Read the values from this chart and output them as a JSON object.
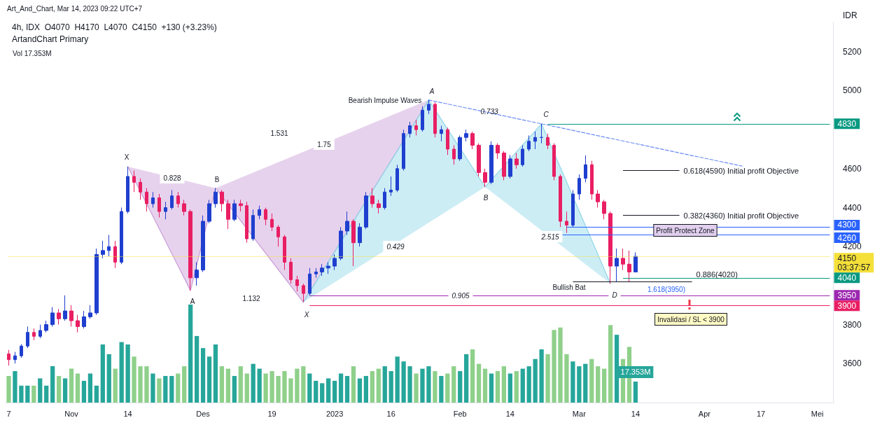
{
  "chart_data": {
    "type": "candlestick",
    "title": "4h, IDX  O4070  H4170  L4070  C4150  +130 (+3.23%)",
    "subtitle": "ArtandChart Primary",
    "ylabel": "IDR",
    "categories": [
      "7",
      null,
      null,
      null,
      null,
      null,
      null,
      null,
      null,
      null,
      "Nov",
      null,
      null,
      null,
      null,
      null,
      null,
      null,
      null,
      "14",
      null,
      null,
      null,
      null,
      null,
      null,
      null,
      null,
      null,
      null,
      null,
      "Des",
      null,
      null,
      null,
      null,
      null,
      null,
      null,
      null,
      null,
      null,
      "19",
      null,
      null,
      null,
      null,
      null,
      null,
      null,
      null,
      null,
      "2023",
      null,
      null,
      null,
      null,
      null,
      null,
      null,
      null,
      "16",
      null,
      null,
      null,
      null,
      null,
      null,
      null,
      null,
      null,
      null,
      "Feb",
      null,
      null,
      null,
      null,
      null,
      null,
      null,
      "14",
      null,
      null,
      null,
      null,
      null,
      null,
      null,
      null,
      null,
      null,
      "Mar",
      null,
      null,
      null,
      null,
      null,
      null,
      null,
      null,
      "14",
      null,
      null,
      null,
      null,
      null,
      null,
      null,
      null,
      null,
      null,
      "Apr",
      null,
      null,
      null,
      null,
      null,
      null,
      null,
      null,
      "17",
      null,
      null,
      null,
      null,
      null,
      null,
      null,
      null,
      "Mei",
      null,
      null
    ],
    "ylim": [
      3400,
      5350
    ],
    "yticks": [
      3600,
      3800,
      4200,
      4400,
      4600,
      5000,
      5200
    ],
    "y2lim": [
      0,
      314
    ],
    "series": [
      {
        "ohlc": [
          [
            3650,
            3670,
            3590,
            3620
          ],
          [
            3620,
            3660,
            3600,
            3640
          ],
          [
            3640,
            3700,
            3630,
            3690
          ],
          [
            3690,
            3790,
            3680,
            3760
          ],
          [
            3760,
            3780,
            3720,
            3740
          ],
          [
            3740,
            3800,
            3730,
            3770
          ],
          [
            3770,
            3820,
            3760,
            3800
          ],
          [
            3800,
            3890,
            3790,
            3860
          ],
          [
            3860,
            3880,
            3800,
            3830
          ],
          [
            3830,
            3950,
            3820,
            3870
          ],
          [
            3870,
            3900,
            3790,
            3820
          ],
          [
            3820,
            3850,
            3760,
            3790
          ],
          [
            3790,
            3870,
            3780,
            3840
          ],
          [
            3840,
            3900,
            3830,
            3860
          ],
          [
            3860,
            4190,
            3850,
            4160
          ],
          [
            4160,
            4230,
            4140,
            4180
          ],
          [
            4180,
            4260,
            4150,
            4200
          ],
          [
            4200,
            4230,
            4090,
            4120
          ],
          [
            4120,
            4400,
            4110,
            4380
          ],
          [
            4380,
            4610,
            4370,
            4560
          ],
          [
            4560,
            4590,
            4480,
            4530
          ],
          [
            4530,
            4550,
            4440,
            4480
          ],
          [
            4480,
            4500,
            4380,
            4420
          ],
          [
            4420,
            4480,
            4400,
            4450
          ],
          [
            4450,
            4470,
            4350,
            4380
          ],
          [
            4380,
            4430,
            4340,
            4400
          ],
          [
            4400,
            4490,
            4390,
            4460
          ],
          [
            4460,
            4480,
            4400,
            4420
          ],
          [
            4420,
            4440,
            4360,
            4380
          ],
          [
            4380,
            4390,
            3975,
            4040
          ],
          [
            4040,
            4120,
            4000,
            4080
          ],
          [
            4080,
            4360,
            4070,
            4330
          ],
          [
            4330,
            4440,
            4320,
            4420
          ],
          [
            4420,
            4500,
            4400,
            4480
          ],
          [
            4480,
            4490,
            4380,
            4420
          ],
          [
            4420,
            4440,
            4290,
            4340
          ],
          [
            4340,
            4440,
            4330,
            4420
          ],
          [
            4420,
            4440,
            4380,
            4410
          ],
          [
            4410,
            4430,
            4220,
            4240
          ],
          [
            4240,
            4390,
            4230,
            4360
          ],
          [
            4360,
            4410,
            4340,
            4390
          ],
          [
            4390,
            4400,
            4310,
            4340
          ],
          [
            4340,
            4370,
            4280,
            4300
          ],
          [
            4300,
            4310,
            4200,
            4250
          ],
          [
            4250,
            4260,
            4080,
            4120
          ],
          [
            4120,
            4140,
            4010,
            4030
          ],
          [
            4030,
            4050,
            3970,
            4000
          ],
          [
            4000,
            4010,
            3915,
            3960
          ],
          [
            3960,
            4090,
            3950,
            4060
          ],
          [
            4060,
            4090,
            4040,
            4070
          ],
          [
            4070,
            4110,
            4050,
            4090
          ],
          [
            4090,
            4120,
            4060,
            4100
          ],
          [
            4100,
            4160,
            4080,
            4140
          ],
          [
            4140,
            4300,
            4130,
            4280
          ],
          [
            4280,
            4380,
            4260,
            4330
          ],
          [
            4330,
            4340,
            4100,
            4220
          ],
          [
            4220,
            4320,
            4200,
            4300
          ],
          [
            4300,
            4480,
            4290,
            4460
          ],
          [
            4460,
            4500,
            4400,
            4420
          ],
          [
            4420,
            4440,
            4370,
            4400
          ],
          [
            4400,
            4500,
            4390,
            4480
          ],
          [
            4480,
            4560,
            4460,
            4490
          ],
          [
            4490,
            4620,
            4480,
            4600
          ],
          [
            4600,
            4800,
            4590,
            4780
          ],
          [
            4780,
            4840,
            4760,
            4820
          ],
          [
            4820,
            4850,
            4770,
            4800
          ],
          [
            4800,
            4920,
            4790,
            4900
          ],
          [
            4900,
            4952,
            4880,
            4930
          ],
          [
            4930,
            4940,
            4760,
            4780
          ],
          [
            4780,
            4820,
            4740,
            4800
          ],
          [
            4800,
            4810,
            4670,
            4700
          ],
          [
            4700,
            4720,
            4620,
            4650
          ],
          [
            4650,
            4770,
            4640,
            4760
          ],
          [
            4760,
            4800,
            4740,
            4780
          ],
          [
            4780,
            4790,
            4700,
            4720
          ],
          [
            4720,
            4730,
            4560,
            4580
          ],
          [
            4580,
            4600,
            4506,
            4530
          ],
          [
            4530,
            4740,
            4520,
            4720
          ],
          [
            4720,
            4730,
            4650,
            4680
          ],
          [
            4680,
            4690,
            4540,
            4560
          ],
          [
            4560,
            4670,
            4550,
            4650
          ],
          [
            4650,
            4680,
            4600,
            4620
          ],
          [
            4620,
            4720,
            4610,
            4700
          ],
          [
            4700,
            4770,
            4690,
            4740
          ],
          [
            4740,
            4790,
            4700,
            4760
          ],
          [
            4760,
            4830,
            4730,
            4760
          ],
          [
            4760,
            4780,
            4700,
            4720
          ],
          [
            4720,
            4730,
            4540,
            4560
          ],
          [
            4560,
            4570,
            4300,
            4330
          ],
          [
            4330,
            4380,
            4270,
            4310
          ],
          [
            4310,
            4490,
            4300,
            4470
          ],
          [
            4470,
            4570,
            4440,
            4550
          ],
          [
            4550,
            4668,
            4530,
            4620
          ],
          [
            4620,
            4640,
            4440,
            4470
          ],
          [
            4470,
            4490,
            4400,
            4430
          ],
          [
            4430,
            4440,
            4340,
            4370
          ],
          [
            4370,
            4380,
            4010,
            4100
          ],
          [
            4100,
            4190,
            4020,
            4140
          ],
          [
            4140,
            4190,
            4080,
            4110
          ],
          [
            4110,
            4180,
            4020,
            4070
          ],
          [
            4070,
            4170,
            4070,
            4150
          ],
          null,
          null,
          null,
          null,
          null,
          null,
          null,
          null,
          null,
          null,
          null,
          null,
          null,
          null,
          null,
          null,
          null,
          null,
          null,
          null,
          null,
          null,
          null,
          null,
          null,
          null,
          null,
          null,
          null,
          null,
          null
        ],
        "colors": [
          "#e91e63",
          "#1f3fcf",
          "#1f3fcf",
          "#1f3fcf",
          "#e91e63",
          "#1f3fcf",
          "#1f3fcf",
          "#1f3fcf",
          "#e91e63",
          "#1f3fcf",
          "#e91e63",
          "#e91e63",
          "#1f3fcf",
          "#1f3fcf",
          "#1f3fcf",
          "#1f3fcf",
          "#1f3fcf",
          "#e91e63",
          "#1f3fcf",
          "#1f3fcf",
          "#e91e63",
          "#e91e63",
          "#e91e63",
          "#1f3fcf",
          "#e91e63",
          "#1f3fcf",
          "#1f3fcf",
          "#e91e63",
          "#e91e63",
          "#e91e63",
          "#1f3fcf",
          "#1f3fcf",
          "#1f3fcf",
          "#1f3fcf",
          "#e91e63",
          "#e91e63",
          "#1f3fcf",
          "#e91e63",
          "#e91e63",
          "#1f3fcf",
          "#1f3fcf",
          "#e91e63",
          "#e91e63",
          "#e91e63",
          "#e91e63",
          "#e91e63",
          "#e91e63",
          "#e91e63",
          "#1f3fcf",
          "#1f3fcf",
          "#1f3fcf",
          "#1f3fcf",
          "#1f3fcf",
          "#1f3fcf",
          "#1f3fcf",
          "#e91e63",
          "#1f3fcf",
          "#1f3fcf",
          "#e91e63",
          "#e91e63",
          "#1f3fcf",
          "#1f3fcf",
          "#1f3fcf",
          "#1f3fcf",
          "#1f3fcf",
          "#e91e63",
          "#1f3fcf",
          "#1f3fcf",
          "#e91e63",
          "#1f3fcf",
          "#e91e63",
          "#e91e63",
          "#1f3fcf",
          "#1f3fcf",
          "#e91e63",
          "#e91e63",
          "#e91e63",
          "#1f3fcf",
          "#e91e63",
          "#e91e63",
          "#1f3fcf",
          "#e91e63",
          "#1f3fcf",
          "#1f3fcf",
          "#1f3fcf",
          "#1f3fcf",
          "#e91e63",
          "#e91e63",
          "#e91e63",
          "#e91e63",
          "#1f3fcf",
          "#1f3fcf",
          "#1f3fcf",
          "#e91e63",
          "#e91e63",
          "#e91e63",
          "#e91e63",
          "#1f3fcf",
          "#e91e63",
          "#e91e63",
          "#1f3fcf",
          null,
          null,
          null,
          null,
          null,
          null,
          null,
          null,
          null,
          null,
          null,
          null,
          null,
          null,
          null,
          null,
          null,
          null,
          null,
          null,
          null,
          null,
          null,
          null,
          null,
          null,
          null,
          null,
          null,
          null,
          null
        ]
      },
      {
        "type": "bar",
        "axis": "y2",
        "values": [
          22,
          26,
          14,
          14,
          14,
          20,
          14,
          30,
          22,
          20,
          28,
          24,
          18,
          24,
          14,
          48,
          40,
          28,
          50,
          48,
          38,
          30,
          30,
          24,
          20,
          22,
          22,
          24,
          30,
          81,
          55,
          45,
          38,
          48,
          30,
          28,
          22,
          30,
          24,
          32,
          28,
          24,
          26,
          22,
          26,
          20,
          28,
          30,
          24,
          18,
          16,
          20,
          18,
          24,
          22,
          30,
          20,
          22,
          26,
          28,
          30,
          26,
          38,
          34,
          30,
          24,
          28,
          30,
          26,
          22,
          24,
          30,
          26,
          40,
          44,
          32,
          28,
          24,
          26,
          30,
          24,
          26,
          28,
          30,
          36,
          44,
          40,
          60,
          62,
          40,
          34,
          30,
          32,
          36,
          30,
          28,
          64,
          56,
          36,
          46,
          17.353,
          null,
          null,
          null,
          null,
          null,
          null,
          null,
          null,
          null,
          null,
          null,
          null,
          null,
          null,
          null,
          null,
          null,
          null,
          null,
          null,
          null,
          null,
          null,
          null,
          null,
          null,
          null,
          null,
          null,
          null,
          null
        ],
        "colors": [
          "#8fd08a",
          "#26a69a",
          "#26a69a",
          "#26a69a",
          "#8fd08a",
          "#26a69a",
          "#26a69a",
          "#26a69a",
          "#8fd08a",
          "#26a69a",
          "#8fd08a",
          "#8fd08a",
          "#26a69a",
          "#26a69a",
          "#26a69a",
          "#26a69a",
          "#26a69a",
          "#8fd08a",
          "#26a69a",
          "#26a69a",
          "#8fd08a",
          "#8fd08a",
          "#8fd08a",
          "#26a69a",
          "#8fd08a",
          "#26a69a",
          "#26a69a",
          "#8fd08a",
          "#8fd08a",
          "#26a69a",
          "#26a69a",
          "#26a69a",
          "#26a69a",
          "#26a69a",
          "#8fd08a",
          "#8fd08a",
          "#26a69a",
          "#8fd08a",
          "#8fd08a",
          "#26a69a",
          "#26a69a",
          "#8fd08a",
          "#8fd08a",
          "#8fd08a",
          "#8fd08a",
          "#8fd08a",
          "#8fd08a",
          "#8fd08a",
          "#26a69a",
          "#26a69a",
          "#26a69a",
          "#26a69a",
          "#26a69a",
          "#26a69a",
          "#26a69a",
          "#8fd08a",
          "#26a69a",
          "#26a69a",
          "#8fd08a",
          "#8fd08a",
          "#26a69a",
          "#26a69a",
          "#26a69a",
          "#26a69a",
          "#26a69a",
          "#8fd08a",
          "#26a69a",
          "#26a69a",
          "#8fd08a",
          "#26a69a",
          "#8fd08a",
          "#8fd08a",
          "#26a69a",
          "#26a69a",
          "#8fd08a",
          "#8fd08a",
          "#8fd08a",
          "#26a69a",
          "#8fd08a",
          "#8fd08a",
          "#26a69a",
          "#8fd08a",
          "#26a69a",
          "#26a69a",
          "#26a69a",
          "#26a69a",
          "#8fd08a",
          "#8fd08a",
          "#8fd08a",
          "#8fd08a",
          "#26a69a",
          "#26a69a",
          "#26a69a",
          "#8fd08a",
          "#8fd08a",
          "#8fd08a",
          "#8fd08a",
          "#26a69a",
          "#8fd08a",
          "#8fd08a",
          "#26a69a",
          null,
          null,
          null,
          null,
          null,
          null,
          null,
          null,
          null,
          null,
          null,
          null,
          null,
          null,
          null,
          null,
          null,
          null,
          null,
          null,
          null,
          null,
          null,
          null,
          null,
          null,
          null,
          null,
          null,
          null,
          null
        ],
        "value_labels": [
          null,
          null,
          null,
          null,
          null,
          null,
          null,
          null,
          null,
          null,
          null,
          null,
          null,
          null,
          null,
          null,
          null,
          null,
          null,
          null,
          null,
          null,
          null,
          null,
          null,
          null,
          null,
          null,
          null,
          null,
          null,
          null,
          null,
          null,
          null,
          null,
          null,
          null,
          null,
          null,
          null,
          null,
          null,
          null,
          null,
          null,
          null,
          null,
          null,
          null,
          null,
          null,
          null,
          null,
          null,
          null,
          null,
          null,
          null,
          null,
          null,
          null,
          null,
          null,
          null,
          null,
          null,
          null,
          null,
          null,
          null,
          null,
          null,
          null,
          null,
          null,
          null,
          null,
          null,
          null,
          null,
          null,
          null,
          null,
          null,
          null,
          null,
          null,
          null,
          null,
          null,
          null,
          null,
          null,
          null,
          null,
          null,
          null,
          null,
          null,
          "17.353M",
          null,
          null,
          null,
          null,
          null,
          null,
          null,
          null,
          null,
          null,
          null,
          null,
          null,
          null,
          null,
          null,
          null,
          null,
          null,
          null,
          null,
          null,
          null,
          null,
          null,
          null,
          null,
          null,
          null,
          null,
          null
        ]
      },
      {
        "type": "line",
        "color": "#c99ad8",
        "line_style": "solid",
        "values": [
          null,
          null,
          null,
          null,
          null,
          null,
          null,
          null,
          null,
          null,
          null,
          null,
          null,
          null,
          null,
          null,
          null,
          null,
          null,
          4610,
          null,
          null,
          null,
          null,
          null,
          null,
          null,
          null,
          null,
          3975,
          null,
          null,
          null,
          4500,
          null,
          null,
          null,
          null,
          null,
          null,
          null,
          null,
          null,
          null,
          null,
          null,
          null,
          3915,
          null,
          null,
          null,
          null,
          null,
          null,
          null,
          null,
          null,
          null,
          null,
          null,
          null,
          null,
          null,
          null,
          null,
          null,
          null,
          4952,
          null,
          null,
          null,
          null,
          null,
          null,
          null,
          null,
          null,
          null,
          null,
          null,
          null,
          null,
          null,
          null,
          null,
          null,
          null,
          null,
          null,
          null,
          null,
          null,
          null,
          null,
          null,
          null,
          null,
          null,
          null,
          null,
          null,
          null,
          null,
          null,
          null,
          null,
          null,
          null,
          null,
          null,
          null,
          null,
          null,
          null,
          null,
          null,
          null,
          null,
          null,
          null,
          null,
          null,
          null,
          null,
          null,
          null,
          null,
          null,
          null,
          null,
          null,
          null
        ]
      },
      {
        "type": "line",
        "color": "#8fd6e8",
        "line_style": "solid",
        "values": [
          null,
          null,
          null,
          null,
          null,
          null,
          null,
          null,
          null,
          null,
          null,
          null,
          null,
          null,
          null,
          null,
          null,
          null,
          null,
          null,
          null,
          null,
          null,
          null,
          null,
          null,
          null,
          null,
          null,
          null,
          null,
          null,
          null,
          null,
          null,
          null,
          null,
          null,
          null,
          null,
          null,
          null,
          null,
          null,
          null,
          null,
          null,
          3915,
          null,
          null,
          null,
          null,
          null,
          null,
          null,
          null,
          null,
          null,
          null,
          null,
          null,
          null,
          null,
          null,
          null,
          null,
          null,
          4952,
          null,
          null,
          null,
          null,
          null,
          null,
          null,
          null,
          4506,
          null,
          null,
          null,
          null,
          null,
          null,
          null,
          null,
          4830,
          null,
          null,
          null,
          null,
          null,
          null,
          null,
          null,
          null,
          null,
          4010,
          null,
          null,
          null,
          null,
          null,
          null,
          null,
          null,
          null,
          null,
          null,
          null,
          null,
          null,
          null,
          null,
          null,
          null,
          null,
          null,
          null,
          null,
          null,
          null,
          null,
          null,
          null,
          null,
          null,
          null,
          null,
          null,
          null,
          null,
          null
        ]
      },
      {
        "type": "line",
        "color": "#6b8cf5",
        "line_style": "dashed",
        "values": [
          null,
          null,
          null,
          null,
          null,
          null,
          null,
          null,
          null,
          null,
          null,
          null,
          null,
          null,
          null,
          null,
          null,
          null,
          null,
          null,
          null,
          null,
          null,
          null,
          null,
          null,
          null,
          null,
          null,
          null,
          null,
          null,
          null,
          null,
          null,
          null,
          null,
          null,
          null,
          null,
          null,
          null,
          null,
          null,
          null,
          null,
          null,
          null,
          null,
          null,
          null,
          null,
          null,
          null,
          null,
          null,
          null,
          null,
          null,
          null,
          null,
          null,
          null,
          null,
          null,
          null,
          null,
          4952,
          null,
          null,
          null,
          null,
          null,
          null,
          null,
          null,
          null,
          null,
          null,
          null,
          null,
          null,
          null,
          null,
          null,
          null,
          null,
          null,
          null,
          null,
          null,
          null,
          null,
          null,
          null,
          null,
          null,
          null,
          null,
          null,
          null,
          null,
          null,
          null,
          null,
          null,
          null,
          null,
          null,
          null,
          null,
          null,
          null,
          null,
          null,
          null,
          null,
          4613,
          null,
          null,
          null,
          null,
          null,
          null,
          null,
          null,
          null,
          null,
          null,
          null,
          null,
          null
        ]
      }
    ],
    "ref_lines": [
      {
        "axis": "y",
        "value": 4830,
        "label": "4830",
        "color": "#089981"
      },
      {
        "axis": "y",
        "value": 4300,
        "label": "4300",
        "color": "#2962ff"
      },
      {
        "axis": "y",
        "value": 4260,
        "label": "4260",
        "color": "#2962ff"
      },
      {
        "axis": "y",
        "value": 4150,
        "label": "4150\n03:37:57",
        "color": "#f5e03a",
        "line_style": "dotted"
      },
      {
        "axis": "y",
        "value": 4040,
        "label": "4040",
        "color": "#089981"
      },
      {
        "axis": "y",
        "value": 3950,
        "label": "3950",
        "color": "#9c27b0"
      },
      {
        "axis": "y",
        "value": 3900,
        "label": "3900",
        "color": "#e91e63"
      },
      {
        "axis": "y",
        "value": 4590,
        "label": "0.618(4590) Initial profit Objective",
        "color": "#131722"
      },
      {
        "axis": "y",
        "value": 4360,
        "label": "0.382(4360) Initial profit Objective",
        "color": "#131722"
      },
      {
        "axis": "y",
        "value": 4020,
        "label": "0.886(4020)",
        "color": "#131722"
      }
    ],
    "annotations": [
      "Art_And_Chart, Mar 14, 2023 09:22 UTC+7",
      "Vol 17.353M",
      "X",
      "0.828",
      "B",
      "1.531",
      "1.75",
      "A",
      "1.132",
      "X",
      "Bearish Impulse Waves",
      "A",
      "0.733",
      "C",
      "0.429",
      "B",
      "2.515",
      "0.905",
      "Bullish Bat",
      "D",
      "1.618(3950)",
      "Profit Protect Zone",
      "Invalidasi / SL < 3900"
    ]
  }
}
